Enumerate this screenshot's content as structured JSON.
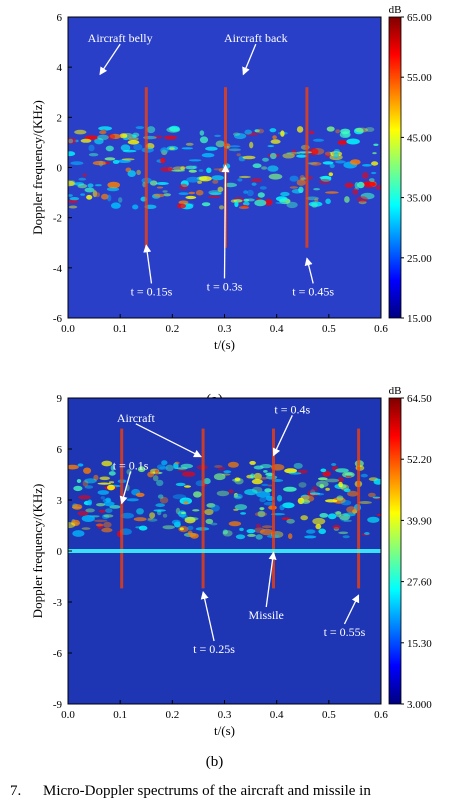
{
  "caption": {
    "figure_label": "7.",
    "text": "Micro-Doppler spectrums of the aircraft and missile in"
  },
  "chart_data": [
    {
      "type": "heatmap",
      "subplot_label": "(a)",
      "xlabel": "t/(s)",
      "ylabel": "Doppler frequency/(KHz)",
      "xlim": [
        0.0,
        0.6
      ],
      "ylim": [
        -6,
        6
      ],
      "xticks": [
        "0.0",
        "0.1",
        "0.2",
        "0.3",
        "0.4",
        "0.5",
        "0.6"
      ],
      "yticks": [
        "-6",
        "-4",
        "-2",
        "0",
        "2",
        "4",
        "6"
      ],
      "colorbar": {
        "unit": "dB",
        "min": 15.0,
        "max": 65.0,
        "ticks": [
          "65.00",
          "55.00",
          "45.00",
          "35.00",
          "25.00",
          "15.00"
        ]
      },
      "grid": false,
      "annotations": [
        {
          "text": "Aircraft belly",
          "x": 0.1,
          "y": 5.0,
          "arrow_to": [
            0.0613,
            3.71
          ]
        },
        {
          "text": "Aircraft back",
          "x": 0.36,
          "y": 5.0,
          "arrow_to": [
            0.336,
            3.71
          ]
        },
        {
          "text": "t = 0.15s",
          "x": 0.16,
          "y": -5.1,
          "arrow_to": [
            0.15,
            -3.1
          ]
        },
        {
          "text": "t = 0.3s",
          "x": 0.3,
          "y": -4.9,
          "arrow_to": [
            0.302,
            0.09
          ]
        },
        {
          "text": "t = 0.45s",
          "x": 0.47,
          "y": -5.1,
          "arrow_to": [
            0.458,
            -3.62
          ]
        }
      ]
    },
    {
      "type": "heatmap",
      "subplot_label": "(b)",
      "xlabel": "t/(s)",
      "ylabel": "Doppler frequency/(KHz)",
      "xlim": [
        0.0,
        0.6
      ],
      "ylim": [
        -9,
        9
      ],
      "xticks": [
        "0.0",
        "0.1",
        "0.2",
        "0.3",
        "0.4",
        "0.5",
        "0.6"
      ],
      "yticks": [
        "-9",
        "-6",
        "-3",
        "0",
        "3",
        "6",
        "9"
      ],
      "colorbar": {
        "unit": "dB",
        "min": 3.0,
        "max": 64.5,
        "ticks": [
          "64.50",
          "52.20",
          "39.90",
          "27.60",
          "15.30",
          "3.000"
        ]
      },
      "grid": false,
      "annotations": [
        {
          "text": "Aircraft",
          "x": 0.13,
          "y": 7.6,
          "arrow_to": [
            0.255,
            5.55
          ]
        },
        {
          "text": "t = 0.4s",
          "x": 0.43,
          "y": 8.1,
          "arrow_to": [
            0.394,
            5.62
          ]
        },
        {
          "text": "t = 0.1s",
          "x": 0.12,
          "y": 4.8,
          "arrow_to": [
            0.103,
            2.8
          ]
        },
        {
          "text": "t = 0.25s",
          "x": 0.28,
          "y": -6.0,
          "arrow_to": [
            0.259,
            -2.41
          ]
        },
        {
          "text": "Missile",
          "x": 0.38,
          "y": -4.0,
          "arrow_to": [
            0.394,
            -0.09
          ]
        },
        {
          "text": "t = 0.55s",
          "x": 0.53,
          "y": -5.0,
          "arrow_to": [
            0.557,
            -2.6
          ]
        }
      ]
    }
  ]
}
